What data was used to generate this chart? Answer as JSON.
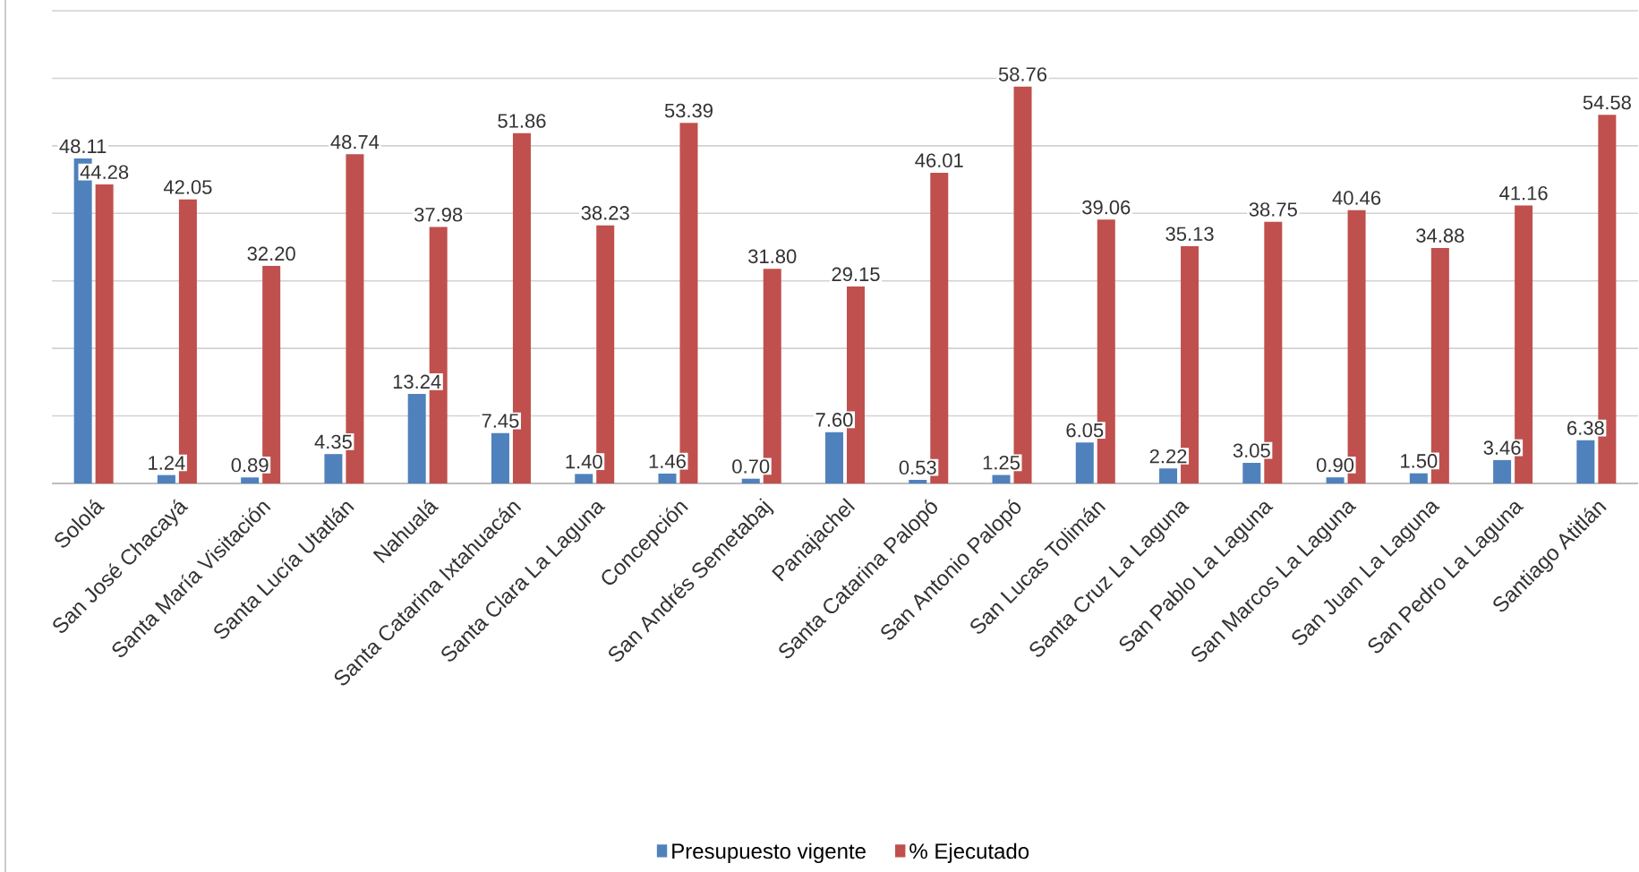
{
  "chart_data": {
    "type": "bar",
    "categories": [
      "Sololá",
      "San José Chacayá",
      "Santa María Visitación",
      "Santa Lucía Utatlán",
      "Nahualá",
      "Santa Catarina Ixtahuacán",
      "Santa Clara La Laguna",
      "Concepción",
      "San Andrés Semetabaj",
      "Panajachel",
      "Santa Catarina Palopó",
      "San Antonio Palopó",
      "San Lucas Tolimán",
      "Santa Cruz La Laguna",
      "San Pablo La Laguna",
      "San Marcos La Laguna",
      "San Juan La Laguna",
      "San Pedro La Laguna",
      "Santiago Atitlán"
    ],
    "series": [
      {
        "name": "Presupuesto vigente",
        "color": "#4f81bd",
        "values": [
          48.11,
          1.24,
          0.89,
          4.35,
          13.24,
          7.45,
          1.4,
          1.46,
          0.7,
          7.6,
          0.53,
          1.25,
          6.05,
          2.22,
          3.05,
          0.9,
          1.5,
          3.46,
          6.38
        ],
        "value_labels": [
          "48.11",
          "1.24",
          "0.89",
          "4.35",
          "13.24",
          "7.45",
          "1.40",
          "1.46",
          "0.70",
          "7.60",
          "0.53",
          "1.25",
          "6.05",
          "2.22",
          "3.05",
          "0.90",
          "1.50",
          "3.46",
          "6.38"
        ]
      },
      {
        "name": "% Ejecutado",
        "color": "#c0504d",
        "values": [
          44.28,
          42.05,
          32.2,
          48.74,
          37.98,
          51.86,
          38.23,
          53.39,
          31.8,
          29.15,
          46.01,
          58.76,
          39.06,
          35.13,
          38.75,
          40.46,
          34.88,
          41.16,
          54.58
        ],
        "value_labels": [
          "44.28",
          "42.05",
          "32.20",
          "48.74",
          "37.98",
          "51.86",
          "38.23",
          "53.39",
          "31.80",
          "29.15",
          "46.01",
          "58.76",
          "39.06",
          "35.13",
          "38.75",
          "40.46",
          "34.88",
          "41.16",
          "54.58"
        ]
      }
    ],
    "ylim": [
      0,
      70
    ],
    "yticks": [
      {
        "value": 0,
        "label": null
      },
      {
        "value": 10,
        "label": null
      },
      {
        "value": 20,
        "label": null
      },
      {
        "value": 30,
        "label": null
      },
      {
        "value": 40,
        "label": null
      },
      {
        "value": 50,
        "label": null
      },
      {
        "value": 60,
        "label": null
      },
      {
        "value": 70,
        "label": null
      }
    ],
    "tick_labels": "x",
    "grid": "y",
    "legend": "bottom"
  }
}
